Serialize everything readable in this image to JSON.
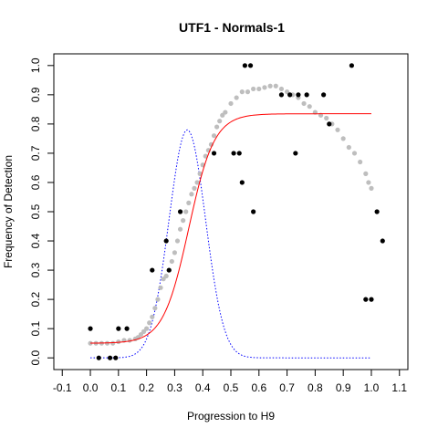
{
  "chart_data": {
    "type": "scatter",
    "title": "UTF1 - Normals-1",
    "xlabel": "Progression to H9",
    "ylabel": "Frequency of Detection",
    "xlim": [
      -0.13,
      1.13
    ],
    "ylim": [
      -0.04,
      1.04
    ],
    "x_ticks": [
      "-0.1",
      "0.0",
      "0.1",
      "0.2",
      "0.3",
      "0.4",
      "0.5",
      "0.6",
      "0.7",
      "0.8",
      "0.9",
      "1.0",
      "1.1"
    ],
    "y_ticks": [
      "0.0",
      "0.1",
      "0.2",
      "0.3",
      "0.4",
      "0.5",
      "0.6",
      "0.7",
      "0.8",
      "0.9",
      "1.0"
    ],
    "grid": false,
    "colors": {
      "observed": "#000000",
      "smoothed": "#bebebe",
      "sigmoid_fit": "#ff0000",
      "density": "#0000ff"
    },
    "observed_points": {
      "x": [
        0.0,
        0.03,
        0.07,
        0.09,
        0.1,
        0.13,
        0.22,
        0.27,
        0.28,
        0.32,
        0.44,
        0.51,
        0.53,
        0.54,
        0.55,
        0.57,
        0.58,
        0.68,
        0.71,
        0.73,
        0.74,
        0.77,
        0.83,
        0.85,
        0.93,
        0.98,
        1.0,
        1.02,
        1.04
      ],
      "y": [
        0.1,
        0.0,
        0.0,
        0.0,
        0.1,
        0.1,
        0.3,
        0.4,
        0.3,
        0.5,
        0.7,
        0.7,
        0.7,
        0.6,
        1.0,
        1.0,
        0.5,
        0.9,
        0.9,
        0.7,
        0.9,
        0.9,
        0.9,
        0.8,
        1.0,
        0.2,
        0.2,
        0.5,
        0.4
      ]
    },
    "smoothed_points": {
      "x": [
        0.0,
        0.02,
        0.04,
        0.06,
        0.08,
        0.1,
        0.12,
        0.14,
        0.16,
        0.17,
        0.18,
        0.19,
        0.2,
        0.21,
        0.22,
        0.23,
        0.24,
        0.25,
        0.26,
        0.27,
        0.28,
        0.29,
        0.3,
        0.31,
        0.32,
        0.33,
        0.34,
        0.35,
        0.36,
        0.37,
        0.38,
        0.39,
        0.4,
        0.41,
        0.42,
        0.43,
        0.44,
        0.45,
        0.46,
        0.47,
        0.48,
        0.5,
        0.52,
        0.54,
        0.56,
        0.58,
        0.6,
        0.62,
        0.64,
        0.66,
        0.68,
        0.7,
        0.72,
        0.74,
        0.76,
        0.78,
        0.8,
        0.82,
        0.84,
        0.86,
        0.88,
        0.9,
        0.92,
        0.94,
        0.96,
        0.98,
        0.99,
        1.0
      ],
      "y": [
        0.05,
        0.05,
        0.05,
        0.05,
        0.05,
        0.055,
        0.06,
        0.06,
        0.065,
        0.07,
        0.08,
        0.09,
        0.1,
        0.12,
        0.14,
        0.17,
        0.2,
        0.24,
        0.27,
        0.28,
        0.3,
        0.33,
        0.36,
        0.4,
        0.44,
        0.47,
        0.5,
        0.53,
        0.56,
        0.58,
        0.6,
        0.63,
        0.66,
        0.69,
        0.71,
        0.73,
        0.76,
        0.79,
        0.81,
        0.83,
        0.84,
        0.87,
        0.89,
        0.91,
        0.91,
        0.92,
        0.92,
        0.925,
        0.93,
        0.93,
        0.92,
        0.91,
        0.9,
        0.89,
        0.87,
        0.86,
        0.84,
        0.83,
        0.82,
        0.8,
        0.78,
        0.75,
        0.72,
        0.7,
        0.67,
        0.63,
        0.6,
        0.58
      ]
    },
    "fit_curve": {
      "lower": 0.05,
      "upper": 0.835,
      "midpoint": 0.35,
      "slope": 22,
      "x_range": [
        0.0,
        1.0
      ]
    },
    "density_curve": {
      "baseline": 0.0,
      "peak": 0.78,
      "mean": 0.345,
      "sd": 0.065,
      "x_range": [
        0.0,
        1.0
      ]
    }
  }
}
